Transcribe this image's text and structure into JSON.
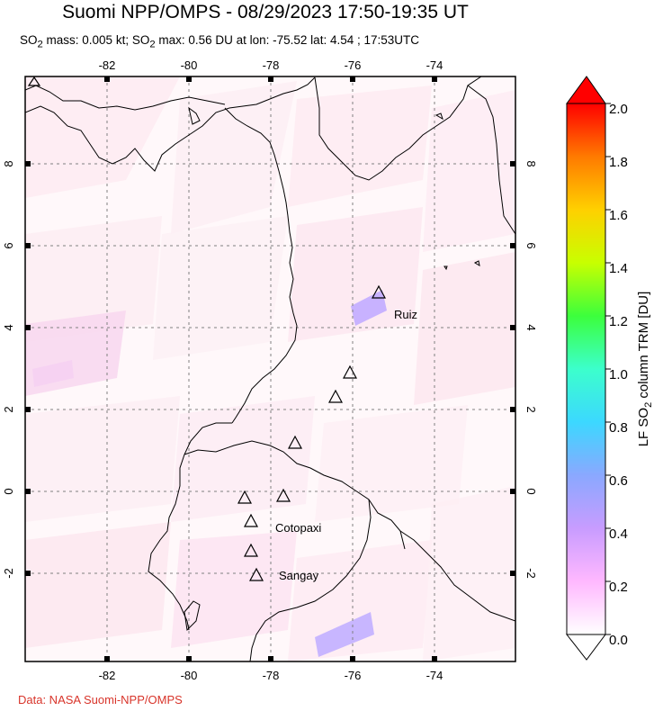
{
  "title": "Suomi NPP/OMPS - 08/29/2023 17:50-19:35 UT",
  "subtitle": {
    "pre": "SO",
    "sub1": "2",
    "mid1": " mass: 0.005 kt; SO",
    "sub2": "2",
    "rest": " max: 0.56 DU at lon: -75.52 lat: 4.54 ; 17:53UTC"
  },
  "credit": "Data: NASA Suomi-NPP/OMPS",
  "map": {
    "lon_ticks": [
      "-82",
      "-80",
      "-78",
      "-76",
      "-74"
    ],
    "lat_ticks": [
      "8",
      "6",
      "4",
      "2",
      "0",
      "-2"
    ],
    "volcanoes": [
      {
        "name": "Ruiz",
        "label": "Ruiz"
      },
      {
        "name": "Cotopaxi",
        "label": "Cotopaxi"
      },
      {
        "name": "Sangay",
        "label": "Sangay"
      }
    ]
  },
  "colorbar": {
    "ticks": [
      "2.0",
      "1.8",
      "1.6",
      "1.4",
      "1.2",
      "1.0",
      "0.8",
      "0.6",
      "0.4",
      "0.2",
      "0.0"
    ],
    "label_pre": "LF SO",
    "label_sub": "2",
    "label_post": " column TRM [DU]",
    "colors": [
      "#ff0000",
      "#ff7a00",
      "#ffd000",
      "#c8ff00",
      "#3cff3c",
      "#3cffcc",
      "#3cd8ff",
      "#8aa8ff",
      "#c89cff",
      "#ffb8ff",
      "#ffffff"
    ]
  }
}
